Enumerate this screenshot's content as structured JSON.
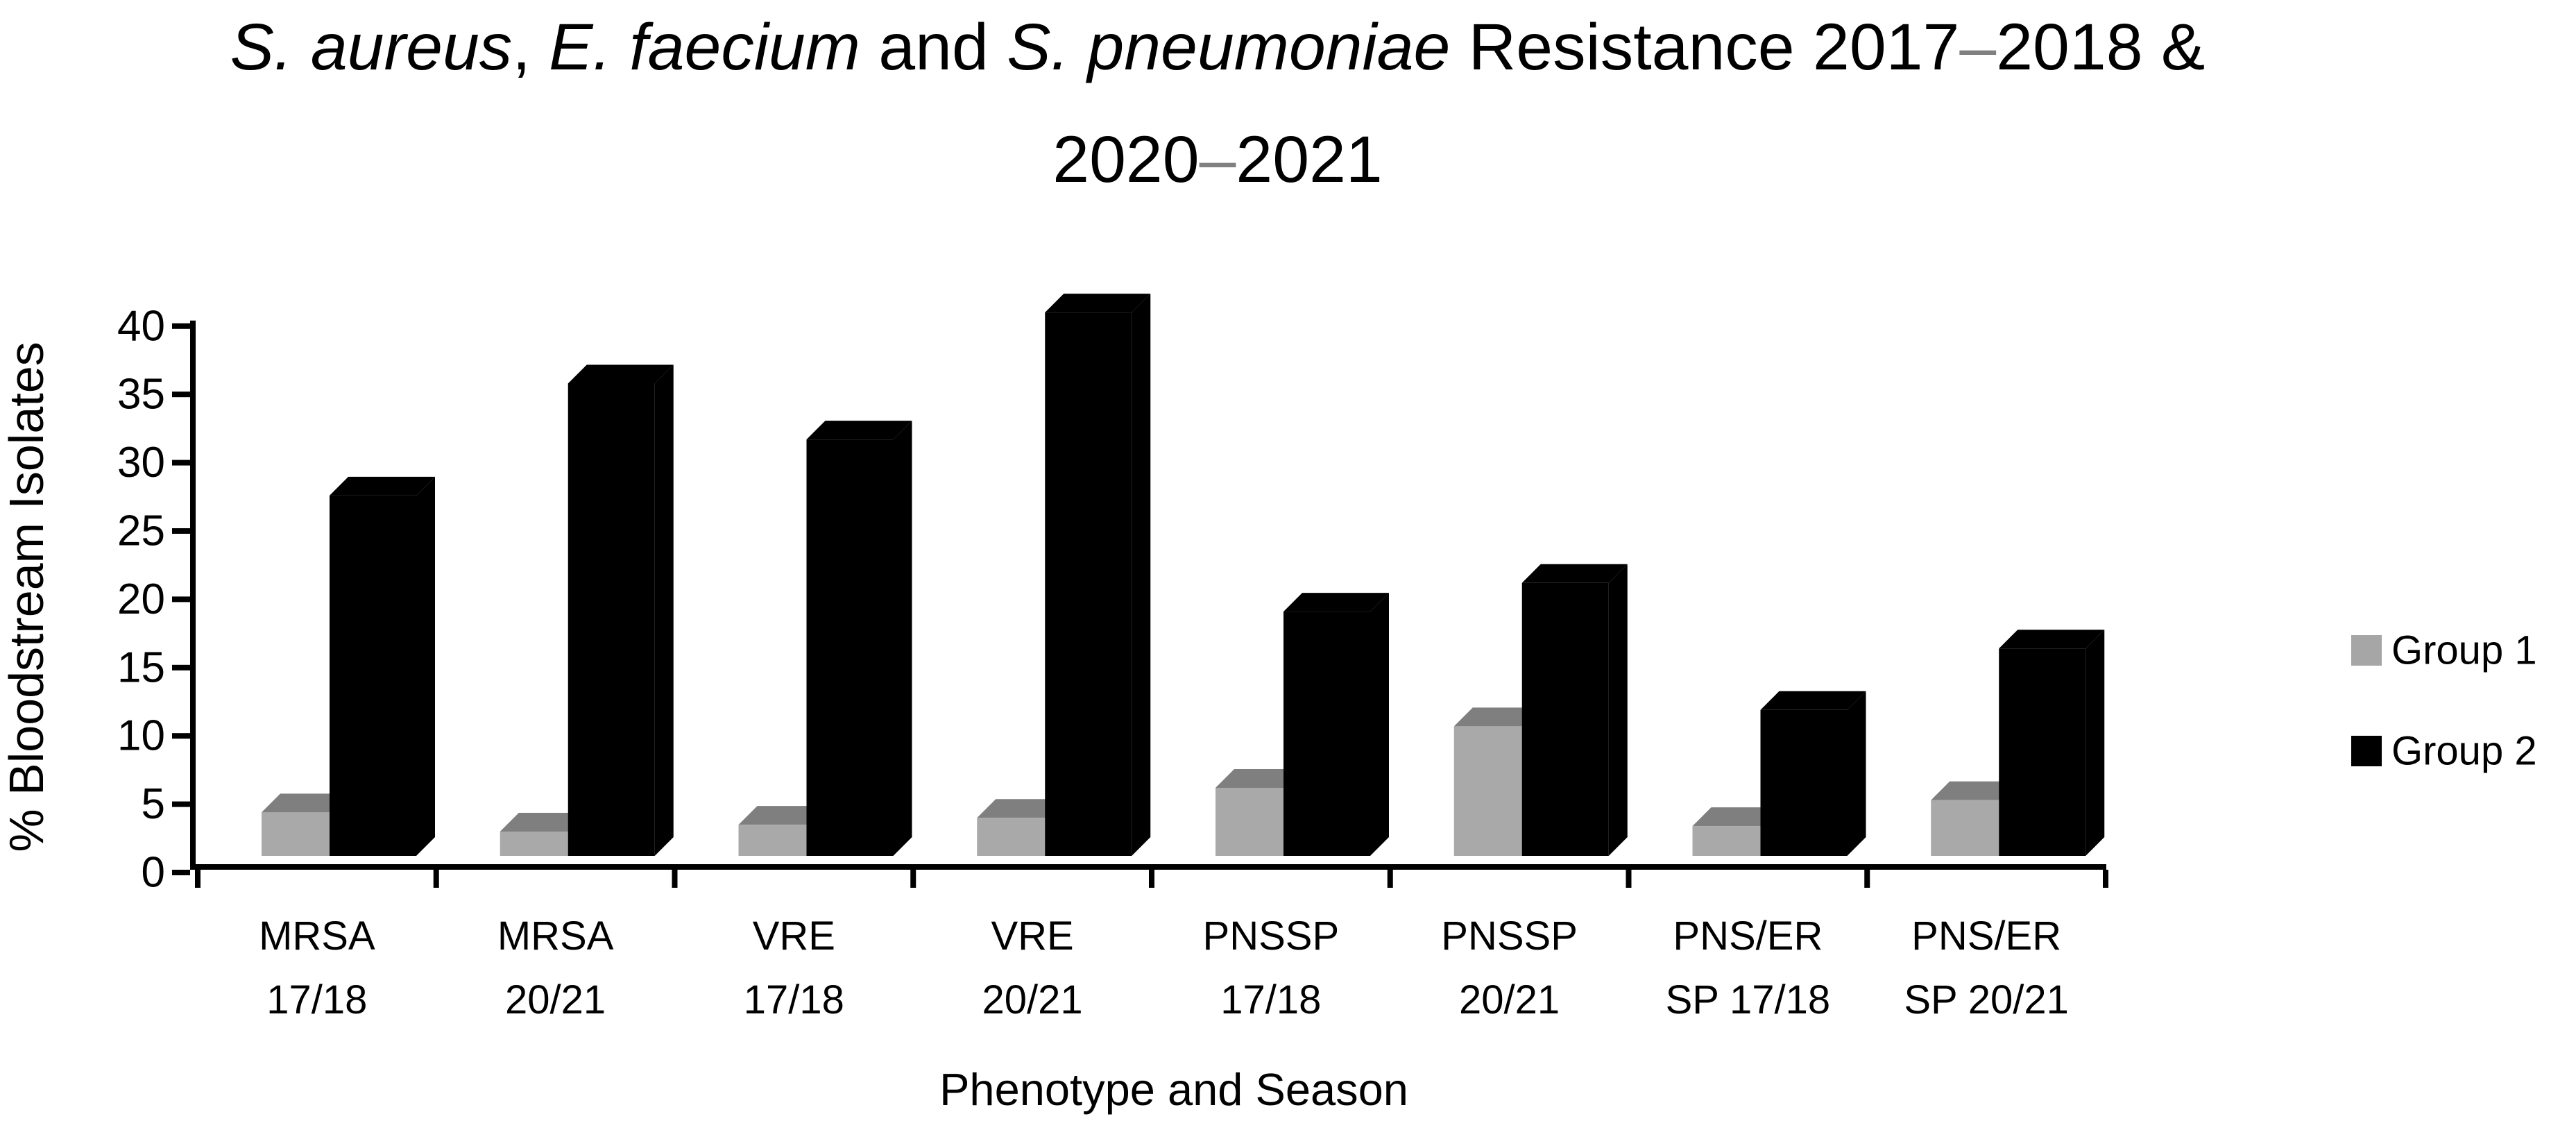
{
  "title": {
    "line1_parts": [
      {
        "text": "S. aureus",
        "italic": true
      },
      {
        "text": ", ",
        "italic": false
      },
      {
        "text": "E. faecium",
        "italic": true
      },
      {
        "text": " and ",
        "italic": false
      },
      {
        "text": "S. pneumoniae",
        "italic": true
      },
      {
        "text": " Resistance 2017",
        "italic": false
      },
      {
        "text": "–",
        "italic": false,
        "gray": true
      },
      {
        "text": "2018 &",
        "italic": false
      }
    ],
    "line2_parts": [
      {
        "text": "2020",
        "italic": false
      },
      {
        "text": "–",
        "italic": false,
        "gray": true
      },
      {
        "text": "2021",
        "italic": false
      }
    ],
    "dash_color": "#808080",
    "text_color": "#000000"
  },
  "chart_data": {
    "type": "bar",
    "effect": "3d-box",
    "title": "S. aureus, E. faecium and S. pneumoniae Resistance 2017–2018 & 2020–2021",
    "xlabel": "Phenotype and Season",
    "ylabel": "% Bloodstream Isolates",
    "ylim": [
      0,
      40
    ],
    "ytick_step": 5,
    "grid": false,
    "legend_position": "right",
    "categories": [
      "MRSA 17/18",
      "MRSA 20/21",
      "VRE 17/18",
      "VRE 20/21",
      "PNSSP 17/18",
      "PNSSP 20/21",
      "PNS/ER SP 17/18",
      "PNS/ER SP 20/21"
    ],
    "category_lines": [
      [
        "MRSA",
        "17/18"
      ],
      [
        "MRSA",
        "20/21"
      ],
      [
        "VRE",
        "17/18"
      ],
      [
        "VRE",
        "20/21"
      ],
      [
        "PNSSP",
        "17/18"
      ],
      [
        "PNSSP",
        "20/21"
      ],
      [
        "PNS/ER",
        "SP 17/18"
      ],
      [
        "PNS/ER",
        "SP 20/21"
      ]
    ],
    "series": [
      {
        "name": "Group 1",
        "front_color": "#a9a9a9",
        "top_color": "#7f7f7f",
        "side_color": "#8f8f8f",
        "values": [
          4.4,
          3.0,
          3.5,
          4.0,
          6.2,
          10.7,
          3.4,
          5.3
        ]
      },
      {
        "name": "Group 2",
        "front_color": "#000000",
        "top_color": "#000000",
        "side_color": "#000000",
        "values": [
          27.6,
          35.8,
          31.7,
          41.0,
          19.1,
          21.2,
          11.9,
          16.4
        ]
      }
    ]
  },
  "legend": {
    "items": [
      {
        "label": "Group 1",
        "color": "#a6a6a6"
      },
      {
        "label": "Group 2",
        "color": "#000000"
      }
    ]
  },
  "axis_color": "#000000"
}
